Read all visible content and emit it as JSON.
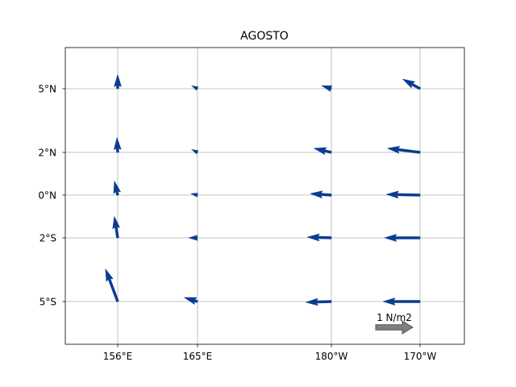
{
  "chart_data": {
    "type": "quiver",
    "title": "AGOSTO",
    "xlabel": "",
    "ylabel": "",
    "grid": true,
    "x_ticks": [
      {
        "lon": 156,
        "label": "156°E"
      },
      {
        "lon": 165,
        "label": "165°E"
      },
      {
        "lon": 180,
        "label": "180°W"
      },
      {
        "lon": 190,
        "label": "170°W"
      }
    ],
    "y_ticks": [
      {
        "lat": 5,
        "label": "5°N"
      },
      {
        "lat": 2,
        "label": "2°N"
      },
      {
        "lat": 0,
        "label": "0°N"
      },
      {
        "lat": -2,
        "label": "2°S"
      },
      {
        "lat": -5,
        "label": "5°S"
      }
    ],
    "xlim": [
      150,
      195
    ],
    "ylim": [
      -7,
      7
    ],
    "arrow_color": "#0a3d91",
    "key": {
      "label": "1 N/m2",
      "magnitude": 1.0,
      "color": "#808080"
    },
    "vectors": [
      {
        "lon": 156,
        "lat": 5,
        "u": 0.0,
        "v": 0.38
      },
      {
        "lon": 165,
        "lat": 5,
        "u": -0.16,
        "v": 0.08
      },
      {
        "lon": 180,
        "lat": 5,
        "u": -0.26,
        "v": 0.08
      },
      {
        "lon": 190,
        "lat": 5,
        "u": -0.47,
        "v": 0.26
      },
      {
        "lon": 156,
        "lat": 2,
        "u": -0.02,
        "v": 0.4
      },
      {
        "lon": 165,
        "lat": 2,
        "u": -0.16,
        "v": 0.08
      },
      {
        "lon": 180,
        "lat": 2,
        "u": -0.47,
        "v": 0.11
      },
      {
        "lon": 190,
        "lat": 2,
        "u": -0.88,
        "v": 0.11
      },
      {
        "lon": 156,
        "lat": 0,
        "u": -0.09,
        "v": 0.38
      },
      {
        "lon": 165,
        "lat": 0,
        "u": -0.18,
        "v": 0.04
      },
      {
        "lon": 180,
        "lat": 0,
        "u": -0.57,
        "v": 0.04
      },
      {
        "lon": 190,
        "lat": 0,
        "u": -0.91,
        "v": 0.02
      },
      {
        "lon": 156,
        "lat": -2,
        "u": -0.09,
        "v": 0.58
      },
      {
        "lon": 165,
        "lat": -2,
        "u": -0.24,
        "v": 0.0
      },
      {
        "lon": 180,
        "lat": -2,
        "u": -0.65,
        "v": 0.02
      },
      {
        "lon": 190,
        "lat": -2,
        "u": -0.96,
        "v": 0.0
      },
      {
        "lon": 156,
        "lat": -5,
        "u": -0.33,
        "v": 0.88
      },
      {
        "lon": 165,
        "lat": -5,
        "u": -0.36,
        "v": 0.11
      },
      {
        "lon": 180,
        "lat": -5,
        "u": -0.69,
        "v": -0.02
      },
      {
        "lon": 190,
        "lat": -5,
        "u": -1.0,
        "v": 0.0
      }
    ]
  }
}
